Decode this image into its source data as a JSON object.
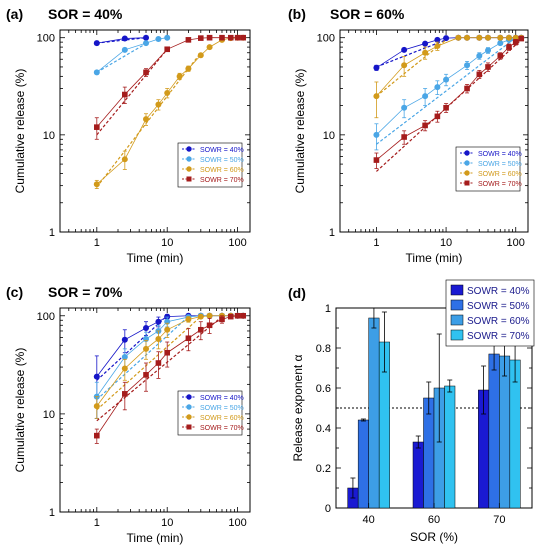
{
  "chart_data": [
    {
      "type": "scatter",
      "panel": "(a)",
      "title": "SOR = 40%",
      "xlabel": "Time  (min)",
      "ylabel": "Cumulative release  (%)",
      "xscale": "log",
      "yscale": "log",
      "xlim": [
        0.3,
        150
      ],
      "ylim": [
        1,
        120
      ],
      "xticks": [
        1,
        10,
        100
      ],
      "yticks": [
        1,
        10,
        100
      ],
      "grid": false,
      "legend_position": "center-right",
      "series": [
        {
          "name": "SOWR = 40%",
          "color": "#1515c8",
          "x": [
            1,
            2.5,
            5
          ],
          "y": [
            88,
            98,
            100
          ],
          "err": [
            4,
            2,
            1
          ],
          "fit_x": [
            1,
            5
          ],
          "fit_y": [
            88,
            100
          ]
        },
        {
          "name": "SOWR = 50%",
          "color": "#4aa6e6",
          "x": [
            1,
            2.5,
            5,
            7.5,
            10
          ],
          "y": [
            44,
            75,
            88,
            97,
            100
          ],
          "err": [
            2,
            3,
            2,
            2,
            1
          ],
          "fit_x": [
            1,
            5
          ],
          "fit_y": [
            44,
            87
          ]
        },
        {
          "name": "SOWR = 60%",
          "color": "#d29a1a",
          "x": [
            1,
            2.5,
            5,
            7.5,
            10,
            15,
            20,
            30,
            40,
            60,
            80,
            100,
            120
          ],
          "y": [
            3.1,
            5.6,
            14.5,
            20.5,
            27,
            40,
            48,
            66,
            80,
            95,
            99,
            100,
            100
          ],
          "err": [
            0.3,
            1.2,
            2,
            2.5,
            3,
            3,
            3,
            3,
            3,
            2,
            2,
            1,
            1
          ],
          "fit_x": [
            1,
            30
          ],
          "fit_y": [
            2.9,
            70
          ]
        },
        {
          "name": "SOWR = 70%",
          "color": "#a51c1c",
          "x": [
            1,
            2.5,
            5,
            10,
            20,
            30,
            40,
            60,
            80,
            100,
            120
          ],
          "y": [
            12,
            26,
            44,
            76,
            95,
            99,
            100,
            100,
            100,
            100,
            100
          ],
          "err": [
            3,
            5,
            4,
            4,
            3,
            2,
            1,
            1,
            1,
            1,
            1
          ],
          "fit_x": [
            1,
            10
          ],
          "fit_y": [
            10,
            76
          ]
        }
      ]
    },
    {
      "type": "scatter",
      "panel": "(b)",
      "title": "SOR = 60%",
      "xlabel": "Time  (min)",
      "ylabel": "Cumulative release  (%)",
      "xscale": "log",
      "yscale": "log",
      "xlim": [
        0.3,
        150
      ],
      "ylim": [
        1,
        120
      ],
      "xticks": [
        1,
        10,
        100
      ],
      "yticks": [
        1,
        10,
        100
      ],
      "grid": false,
      "legend_position": "bottom-right",
      "series": [
        {
          "name": "SOWR = 40%",
          "color": "#1515c8",
          "x": [
            1,
            2.5,
            5,
            7.5,
            10,
            15,
            20,
            30,
            40,
            60,
            80,
            100,
            120
          ],
          "y": [
            49,
            75,
            87,
            95,
            99,
            100,
            100,
            100,
            100,
            100,
            100,
            100,
            100
          ],
          "err": [
            3,
            3,
            3,
            3,
            2,
            1,
            1,
            1,
            1,
            1,
            1,
            1,
            1
          ],
          "fit_x": [
            1,
            10
          ],
          "fit_y": [
            50,
            95
          ]
        },
        {
          "name": "SOWR = 50%",
          "color": "#4aa6e6",
          "x": [
            1,
            2.5,
            5,
            7.5,
            10,
            20,
            30,
            40,
            60,
            80,
            100,
            120
          ],
          "y": [
            10,
            19,
            25,
            31,
            37,
            52,
            65,
            74,
            88,
            95,
            99,
            100
          ],
          "err": [
            3,
            4,
            5,
            5,
            5,
            5,
            5,
            5,
            4,
            3,
            2,
            1
          ],
          "fit_x": [
            1,
            100
          ],
          "fit_y": [
            8,
            100
          ]
        },
        {
          "name": "SOWR = 60%",
          "color": "#d29a1a",
          "x": [
            1,
            2.5,
            5,
            7.5,
            15,
            20,
            30,
            40,
            60,
            80,
            100,
            120
          ],
          "y": [
            25,
            52,
            70,
            82,
            100,
            100,
            100,
            100,
            100,
            100,
            100,
            100
          ],
          "err": [
            10,
            12,
            10,
            8,
            2,
            1,
            1,
            1,
            1,
            1,
            1,
            1
          ],
          "fit_x": [
            1,
            10
          ],
          "fit_y": [
            25,
            95
          ]
        },
        {
          "name": "SOWR = 70%",
          "color": "#a51c1c",
          "x": [
            1,
            2.5,
            5,
            7.5,
            10,
            20,
            30,
            40,
            60,
            80,
            100,
            120
          ],
          "y": [
            5.5,
            9.5,
            12.5,
            15.5,
            19,
            30,
            42,
            50,
            65,
            80,
            90,
            98
          ],
          "err": [
            1,
            1.5,
            1.5,
            2,
            2,
            3,
            4,
            5,
            5,
            6,
            6,
            5
          ],
          "fit_x": [
            1,
            120
          ],
          "fit_y": [
            4.2,
            95
          ]
        }
      ]
    },
    {
      "type": "scatter",
      "panel": "(c)",
      "title": "SOR = 70%",
      "xlabel": "Time  (min)",
      "ylabel": "Cumulative release  (%)",
      "xscale": "log",
      "yscale": "log",
      "xlim": [
        0.3,
        150
      ],
      "ylim": [
        1,
        120
      ],
      "xticks": [
        1,
        10,
        100
      ],
      "yticks": [
        1,
        10,
        100
      ],
      "grid": false,
      "legend_position": "bottom-right",
      "series": [
        {
          "name": "SOWR = 40%",
          "color": "#1515c8",
          "x": [
            1,
            2.5,
            5,
            7.5,
            10,
            20,
            30,
            40,
            60,
            80,
            100,
            120
          ],
          "y": [
            24,
            57,
            75,
            87,
            98,
            100,
            100,
            100,
            100,
            100,
            100,
            100
          ],
          "err": [
            15,
            15,
            12,
            10,
            5,
            2,
            1,
            1,
            1,
            1,
            1,
            1
          ],
          "fit_x": [
            1,
            10
          ],
          "fit_y": [
            22,
            100
          ]
        },
        {
          "name": "SOWR = 50%",
          "color": "#4aa6e6",
          "x": [
            1,
            2.5,
            5,
            7.5,
            10,
            20,
            30,
            40,
            60,
            80,
            100,
            120
          ],
          "y": [
            15,
            38,
            58,
            70,
            87,
            97,
            100,
            100,
            100,
            100,
            100,
            100
          ],
          "err": [
            6,
            8,
            10,
            10,
            10,
            5,
            2,
            1,
            1,
            1,
            1,
            1
          ],
          "fit_x": [
            1,
            20
          ],
          "fit_y": [
            14,
            98
          ]
        },
        {
          "name": "SOWR = 60%",
          "color": "#d29a1a",
          "x": [
            1,
            2.5,
            5,
            7.5,
            10,
            20,
            30,
            40,
            60,
            80,
            100,
            120
          ],
          "y": [
            12,
            29,
            46,
            58,
            72,
            92,
            98,
            100,
            100,
            100,
            100,
            100
          ],
          "err": [
            3,
            7,
            10,
            12,
            12,
            6,
            3,
            1,
            1,
            1,
            1,
            1
          ],
          "fit_x": [
            1,
            30
          ],
          "fit_y": [
            11,
            98
          ]
        },
        {
          "name": "SOWR = 70%",
          "color": "#a51c1c",
          "x": [
            1,
            2.5,
            5,
            7.5,
            10,
            20,
            30,
            40,
            60,
            80,
            100,
            120
          ],
          "y": [
            6,
            16,
            25,
            33,
            42,
            59,
            72,
            80,
            92,
            98,
            100,
            100
          ],
          "err": [
            1,
            5,
            8,
            10,
            12,
            15,
            15,
            14,
            8,
            4,
            2,
            1
          ],
          "fit_x": [
            1,
            60
          ],
          "fit_y": [
            8.5,
            98
          ]
        }
      ]
    },
    {
      "type": "bar",
      "panel": "(d)",
      "title": "",
      "xlabel": "SOR (%)",
      "ylabel": "Release exponent α",
      "categories": [
        "40",
        "60",
        "70"
      ],
      "ylim": [
        0,
        1
      ],
      "yticks": [
        "0",
        "0.2",
        "0.4",
        "0.6",
        "0.8",
        "1"
      ],
      "reference_line": 0.5,
      "legend_position": "top-right",
      "series": [
        {
          "name": "SOWR = 40%",
          "color": "#1a1ad2",
          "values": [
            0.1,
            0.33,
            0.59
          ],
          "err": [
            0.05,
            0.03,
            0.12
          ]
        },
        {
          "name": "SOWR = 50%",
          "color": "#2e70e6",
          "values": [
            0.44,
            0.55,
            0.77
          ],
          "err": [
            0.005,
            0.08,
            0.08
          ]
        },
        {
          "name": "SOWR = 60%",
          "color": "#3d9ee6",
          "values": [
            0.95,
            0.6,
            0.76
          ],
          "err": [
            0.05,
            0.27,
            0.1
          ]
        },
        {
          "name": "SOWR = 70%",
          "color": "#30c2f0",
          "values": [
            0.83,
            0.61,
            0.74
          ],
          "err": [
            0.15,
            0.03,
            0.11
          ]
        }
      ]
    }
  ]
}
